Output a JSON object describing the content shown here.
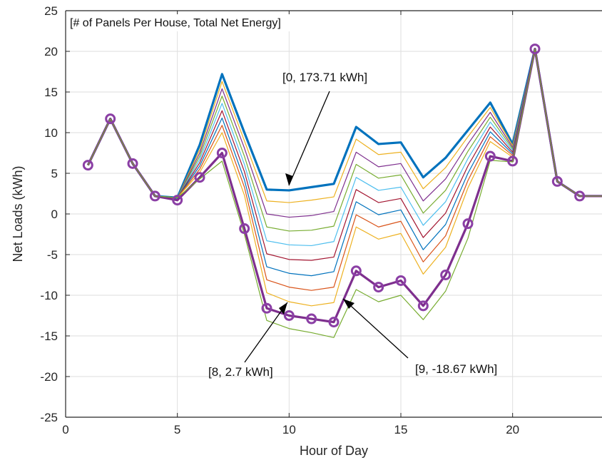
{
  "chart_data": {
    "type": "line",
    "title": "[# of Panels Per House, Total Net Energy]",
    "xlabel": "Hour of Day",
    "ylabel": "Net Loads (kWh)",
    "xlim": [
      0,
      24
    ],
    "ylim": [
      -25,
      25
    ],
    "xticks": [
      0,
      5,
      10,
      15,
      20
    ],
    "yticks": [
      25,
      20,
      15,
      10,
      5,
      0,
      -5,
      -10,
      -15,
      -20,
      -25
    ],
    "grid": true,
    "x": [
      1,
      2,
      3,
      4,
      5,
      6,
      7,
      8,
      9,
      10,
      11,
      12,
      13,
      14,
      15,
      16,
      17,
      18,
      19,
      20,
      21,
      22,
      23,
      24
    ],
    "series": [
      {
        "color": "#0072BD",
        "width": 3.2,
        "values": [
          6,
          11.7,
          6.2,
          2.2,
          2,
          8.5,
          17.2,
          10,
          3,
          2.9,
          3.3,
          3.7,
          10.7,
          8.6,
          8.8,
          4.5,
          6.9,
          10.3,
          13.7,
          8.6,
          20.3,
          4,
          2.2,
          2.2
        ]
      },
      {
        "color": "#EDB120",
        "width": 1.2,
        "values": [
          6,
          11.7,
          6.2,
          2.2,
          2,
          7.9,
          16.3,
          9,
          1.6,
          1.4,
          1.7,
          2.1,
          9.2,
          7.3,
          7.6,
          3.1,
          5.7,
          9.5,
          13.1,
          8.4,
          20.3,
          4,
          2.2,
          2.2
        ]
      },
      {
        "color": "#7E2F8E",
        "width": 1.2,
        "values": [
          6,
          11.7,
          6.2,
          2.2,
          2,
          7.5,
          15.4,
          8.1,
          0,
          -0.4,
          -0.2,
          0.3,
          7.6,
          5.8,
          6.2,
          1.6,
          4.3,
          8.6,
          12.5,
          8.2,
          20.3,
          4,
          2.2,
          2.2
        ]
      },
      {
        "color": "#77AC30",
        "width": 1.2,
        "values": [
          6,
          11.7,
          6.2,
          2.2,
          2,
          7.1,
          14.5,
          7.1,
          -1.6,
          -2.1,
          -2,
          -1.5,
          6.1,
          4.4,
          4.8,
          0.1,
          2.9,
          7.7,
          11.9,
          8,
          20.3,
          4,
          2.2,
          2.2
        ]
      },
      {
        "color": "#4DBEEE",
        "width": 1.2,
        "values": [
          6,
          11.7,
          6.2,
          2.2,
          2,
          6.7,
          13.6,
          6.1,
          -3.3,
          -3.8,
          -3.9,
          -3.4,
          4.5,
          2.9,
          3.3,
          -1.4,
          1.5,
          6.8,
          11.3,
          7.8,
          20.3,
          4,
          2.2,
          2.2
        ]
      },
      {
        "color": "#A2142F",
        "width": 1.2,
        "values": [
          6,
          11.7,
          6.2,
          2.2,
          2,
          6.3,
          12.7,
          5.2,
          -4.9,
          -5.6,
          -5.7,
          -5.3,
          3,
          1.4,
          1.9,
          -2.9,
          0.1,
          5.9,
          10.7,
          7.6,
          20.3,
          4,
          2.2,
          2.2
        ]
      },
      {
        "color": "#0072BD",
        "width": 1.2,
        "values": [
          6,
          11.7,
          6.2,
          2.2,
          2,
          5.9,
          11.8,
          4.2,
          -6.5,
          -7.3,
          -7.6,
          -7.1,
          1.5,
          -0.1,
          0.5,
          -4.4,
          -1.3,
          5,
          10.1,
          7.4,
          20.3,
          4,
          2.2,
          2.2
        ]
      },
      {
        "color": "#D95319",
        "width": 1.2,
        "values": [
          6,
          11.7,
          6.2,
          2.2,
          2,
          5.5,
          10.9,
          3.3,
          -8.1,
          -9,
          -9.4,
          -9,
          -0.1,
          -1.6,
          -0.9,
          -5.9,
          -2.7,
          4.1,
          9.5,
          7.2,
          20.3,
          4,
          2.2,
          2.2
        ]
      },
      {
        "color": "#EDB120",
        "width": 1.2,
        "values": [
          6,
          11.7,
          6.2,
          2.2,
          2,
          5.1,
          10,
          2.3,
          -9.7,
          -10.8,
          -11.3,
          -10.9,
          -1.6,
          -3.1,
          -2.4,
          -7.4,
          -4.1,
          3.2,
          8.9,
          7,
          20.3,
          4,
          2.2,
          2.2
        ]
      },
      {
        "color": "#7E2F8E",
        "width": 3.2,
        "values": [
          6,
          11.7,
          6.2,
          2.2,
          1.7,
          4.5,
          7.5,
          -1.8,
          -11.6,
          -12.5,
          -12.9,
          -13.3,
          -7,
          -9,
          -8.2,
          -11.3,
          -7.5,
          -1.2,
          7.1,
          6.5,
          20.3,
          4,
          2.2,
          2.2
        ]
      },
      {
        "color": "#77AC30",
        "width": 1.2,
        "values": [
          6,
          11.7,
          6.2,
          2.2,
          2,
          4.3,
          6.5,
          -2.5,
          -13.1,
          -14.1,
          -14.6,
          -15.2,
          -9.3,
          -10.8,
          -10,
          -13,
          -9.5,
          -3,
          6.6,
          6.4,
          20.3,
          4,
          2.2,
          2.2
        ]
      }
    ],
    "markers": {
      "series_index": 9,
      "style": "circle",
      "color": "#8B3FA5"
    },
    "annotations": [
      {
        "text": "[0, 173.71 kWh]",
        "point": [
          10,
          3
        ]
      },
      {
        "text": "[8, 2.7 kWh]",
        "point": [
          10,
          -10.8
        ]
      },
      {
        "text": "[9, -18.67 kWh]",
        "point": [
          12.5,
          -10.6
        ]
      }
    ]
  }
}
